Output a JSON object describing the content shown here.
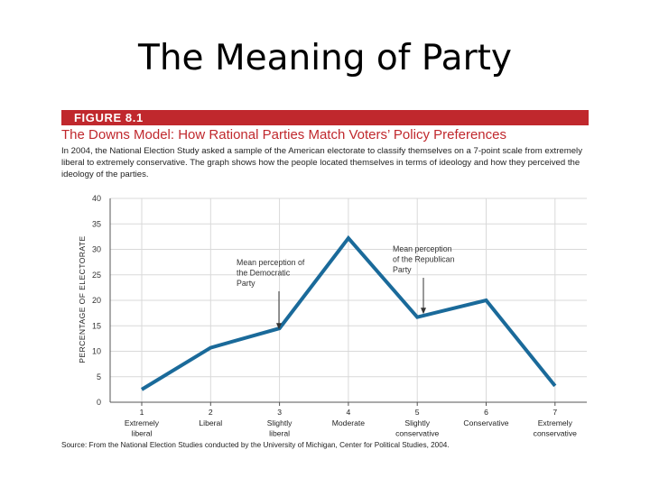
{
  "slide": {
    "title": "The Meaning of Party"
  },
  "figure": {
    "label": "FIGURE 8.1",
    "title": "The Downs Model: How Rational Parties Match Voters’ Policy Preferences",
    "description": "In 2004, the National Election Study asked a sample of the American electorate to classify themselves on a 7-point scale from extremely liberal to extremely conservative. The graph shows how the people located themselves in terms of ideology and how they perceived the ideology of the parties.",
    "source": "Source: From the National Election Studies conducted by the University of Michigan, Center for Political Studies, 2004."
  },
  "chart_data": {
    "type": "line",
    "ylabel": "PERCENTAGE OF ELECTORATE",
    "ylim": [
      0,
      40
    ],
    "yticks": [
      0,
      5,
      10,
      15,
      20,
      25,
      30,
      35,
      40
    ],
    "grid": true,
    "line_color": "#1a6a9a",
    "categories": [
      {
        "num": "1",
        "label": [
          "Extremely",
          "liberal"
        ]
      },
      {
        "num": "2",
        "label": [
          "Liberal"
        ]
      },
      {
        "num": "3",
        "label": [
          "Slightly",
          "liberal"
        ]
      },
      {
        "num": "4",
        "label": [
          "Moderate"
        ]
      },
      {
        "num": "5",
        "label": [
          "Slightly",
          "conservative"
        ]
      },
      {
        "num": "6",
        "label": [
          "Conservative"
        ]
      },
      {
        "num": "7",
        "label": [
          "Extremely",
          "conservative"
        ]
      }
    ],
    "values": [
      2.5,
      10.7,
      14.5,
      32.2,
      16.7,
      20,
      3.2
    ],
    "annotations": [
      {
        "lines": [
          "Mean perception of",
          "the Democratic",
          "Party"
        ],
        "target_x": 3,
        "target_y": 15
      },
      {
        "lines": [
          "Mean perception",
          "of the Republican",
          "Party"
        ],
        "target_x": 5.1,
        "target_y": 18
      }
    ]
  }
}
